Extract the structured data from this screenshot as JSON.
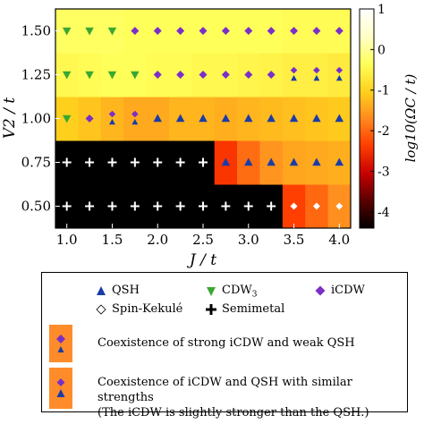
{
  "chart_data": {
    "type": "heatmap",
    "xlabel": "J / t",
    "ylabel": "V2 / t",
    "x_ticks": [
      "1.0",
      "1.5",
      "2.0",
      "2.5",
      "3.0",
      "3.5",
      "4.0"
    ],
    "y_ticks": [
      "0.50",
      "0.75",
      "1.00",
      "1.25",
      "1.50"
    ],
    "x_values": [
      1.0,
      1.25,
      1.5,
      1.75,
      2.0,
      2.25,
      2.5,
      2.75,
      3.0,
      3.25,
      3.5,
      3.75,
      4.0
    ],
    "y_values": [
      0.5,
      0.75,
      1.0,
      1.25,
      1.5
    ],
    "colorbar": {
      "label": "log10(ΩC / t)",
      "ticks": [
        "1",
        "0",
        "-1",
        "-2",
        "-3",
        "-4"
      ],
      "range": [
        -4.4,
        1.0
      ],
      "colors": [
        "#000000",
        "#5a0000",
        "#c80000",
        "#ff3c00",
        "#ff8a1e",
        "#ffd21e",
        "#ffff5a",
        "#ffffc8",
        "#ffffff"
      ]
    },
    "log_omega": [
      [
        -4.4,
        -4.4,
        -4.4,
        -4.4,
        -4.4,
        -4.4,
        -4.4,
        -4.4,
        -4.4,
        -4.4,
        -2.35,
        -2.0,
        -1.65
      ],
      [
        -4.4,
        -4.4,
        -4.4,
        -4.4,
        -4.4,
        -4.4,
        -4.4,
        -2.45,
        -1.95,
        -1.6,
        -1.45,
        -1.4,
        -1.35
      ],
      [
        -1.05,
        -1.15,
        -1.3,
        -1.4,
        -1.4,
        -1.3,
        -1.3,
        -1.35,
        -1.3,
        -1.25,
        -1.2,
        -1.15,
        -1.1
      ],
      [
        -0.45,
        -0.4,
        -0.35,
        -0.35,
        -0.4,
        -0.4,
        -0.45,
        -0.45,
        -0.5,
        -0.55,
        -0.6,
        -0.6,
        -0.65
      ],
      [
        -0.3,
        -0.3,
        -0.3,
        -0.35,
        -0.35,
        -0.35,
        -0.35,
        -0.35,
        -0.35,
        -0.35,
        -0.4,
        -0.4,
        -0.4
      ]
    ],
    "phases": [
      [
        "S",
        "S",
        "S",
        "S",
        "S",
        "S",
        "S",
        "S",
        "S",
        "S",
        "K",
        "K",
        "K"
      ],
      [
        "S",
        "S",
        "S",
        "S",
        "S",
        "S",
        "S",
        "Q",
        "Q",
        "Q",
        "Q",
        "Q",
        "Q"
      ],
      [
        "C",
        "I",
        "IQ",
        "IQ",
        "Q",
        "Q",
        "Q",
        "Q",
        "Q",
        "Q",
        "Q",
        "Q",
        "Q"
      ],
      [
        "C",
        "C",
        "C",
        "C",
        "I",
        "I",
        "I",
        "I",
        "I",
        "I",
        "IQ",
        "IQ",
        "IQ"
      ],
      [
        "C",
        "C",
        "C",
        "I",
        "I",
        "I",
        "I",
        "I",
        "I",
        "I",
        "I",
        "I",
        "I"
      ]
    ],
    "grid": false
  },
  "legend": {
    "qsh": "QSH",
    "cdw3": "CDW",
    "cdw3_sub": "3",
    "icdw": "iCDW",
    "spin_kekule": "Spin-Kekulé",
    "semimetal": "Semimetal",
    "strong_icdw_weak_qsh": "Coexistence of strong iCDW and weak QSH",
    "similar_line1": "Coexistence of iCDW and QSH with similar strengths",
    "similar_line2": "(The iCDW is slightly stronger than the QSH.)"
  },
  "colors": {
    "qsh": "#1a3ca8",
    "cdw3": "#3aa832",
    "icdw": "#7a2fc8",
    "spin_kekule": "#ffffff",
    "semimetal": "#ffffff",
    "swatch": "#ff8c2a"
  }
}
